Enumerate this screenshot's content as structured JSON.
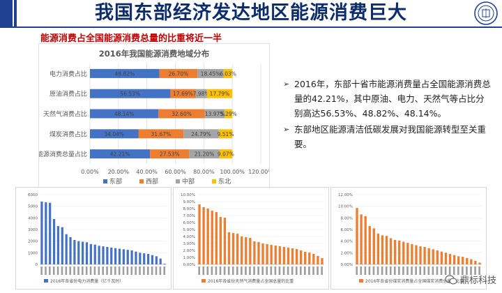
{
  "header": {
    "title": "我国东部经济发达地区能源消费巨大",
    "subtitle": "能源消费占全国能源消费总量的比重将近一半"
  },
  "bullets": [
    "2016年，东部十省市能源消费量占全国能源消费总量的42.21%，其中原油、电力、天然气等占比分别高达56.53%、48.82%、48.14%。",
    "东部地区能源清洁低碳发展对我国能源转型至关重要。"
  ],
  "watermark": "鼎标科技",
  "colors": {
    "east": "#4472c4",
    "west": "#ed7d31",
    "central": "#a5a5a5",
    "north": "#ffc000",
    "title_blue": "#0c2c6b",
    "accent_red": "#c00000"
  },
  "chart_data": [
    {
      "type": "bar",
      "orientation": "horizontal",
      "stacked": true,
      "title": "2016年我国能源消费地域分布",
      "categories": [
        "电力消费占比",
        "原油消费占比",
        "天然气消费占比",
        "煤炭消费占比",
        "能源消费总量占比"
      ],
      "series": [
        {
          "name": "东部",
          "values": [
            48.82,
            56.53,
            48.14,
            34.04,
            42.21
          ],
          "labels": [
            "48.82%",
            "56.53%",
            "48.14%",
            "34.04%",
            "42.21%"
          ]
        },
        {
          "name": "西部",
          "values": [
            26.7,
            17.69,
            32.6,
            31.67,
            27.53
          ],
          "labels": [
            "26.70%",
            "17.69%",
            "32.60%",
            "31.67%",
            "27.53%"
          ]
        },
        {
          "name": "中部",
          "values": [
            18.45,
            7.98,
            13.97,
            24.79,
            21.2
          ],
          "labels": [
            "18.45%",
            "7.98%",
            "13.97%",
            "24.79%",
            "21.20%"
          ]
        },
        {
          "name": "东北",
          "values": [
            6.03,
            17.79,
            5.29,
            9.51,
            9.07
          ],
          "labels": [
            "6.03%",
            "17.79%",
            "5.29%",
            "9.51%",
            "9.07%"
          ]
        }
      ],
      "xlim": [
        0,
        120
      ],
      "xticks": [
        "0.00%",
        "20.00%",
        "40.00%",
        "60.00%",
        "80.00%",
        "100.00%",
        "120.00%"
      ],
      "legend": "bottom",
      "grid": true
    },
    {
      "type": "bar",
      "title": "2016年各省份电力消费量（亿千瓦时）",
      "yticks": [
        "0",
        "1000",
        "2000",
        "3000",
        "4000",
        "5000",
        "6000"
      ],
      "ylim": [
        0,
        6000
      ],
      "values": [
        5400,
        5350,
        5300,
        3900,
        3300,
        3200,
        2600,
        2350,
        2100,
        2000,
        1950,
        1900,
        1750,
        1700,
        1600,
        1550,
        1500,
        1450,
        1400,
        1350,
        1300,
        1250,
        1200,
        1100,
        1000,
        950,
        900,
        800,
        700,
        500,
        50
      ],
      "color": "#4472c4"
    },
    {
      "type": "bar",
      "title": "2016年各省份天然气消费量占全国总量的比重",
      "yticks": [
        "0.00%",
        "1.00%",
        "2.00%",
        "3.00%",
        "4.00%",
        "5.00%",
        "6.00%",
        "7.00%",
        "8.00%",
        "9.00%",
        "10.00%"
      ],
      "ylim": [
        0,
        10
      ],
      "values": [
        8.6,
        8.2,
        8.0,
        7.7,
        7.5,
        6.8,
        6.7,
        4.6,
        4.5,
        4.4,
        4.0,
        3.9,
        3.8,
        3.3,
        3.2,
        3.0,
        2.9,
        2.8,
        2.7,
        2.6,
        2.5,
        2.4,
        2.3,
        2.2,
        2.0,
        1.8,
        1.7,
        1.5,
        1.2,
        0.9
      ],
      "color": "#ed7d31"
    },
    {
      "type": "bar",
      "title": "2016年各省份煤炭消费量占全国煤炭消费总量的比重",
      "yticks": [
        "0.00%",
        "2.00%",
        "4.00%",
        "6.00%",
        "8.00%",
        "10.00%",
        "12.00%"
      ],
      "ylim": [
        0,
        12
      ],
      "values": [
        9.7,
        8.6,
        8.3,
        6.6,
        6.2,
        5.3,
        5.0,
        4.9,
        4.5,
        4.2,
        4.1,
        3.9,
        3.7,
        3.5,
        3.3,
        3.1,
        3.0,
        2.8,
        2.6,
        2.4,
        2.2,
        2.0,
        1.8,
        1.6,
        1.4,
        1.3,
        1.1,
        0.9,
        0.6,
        0.3
      ],
      "color": "#ed7d31"
    }
  ]
}
